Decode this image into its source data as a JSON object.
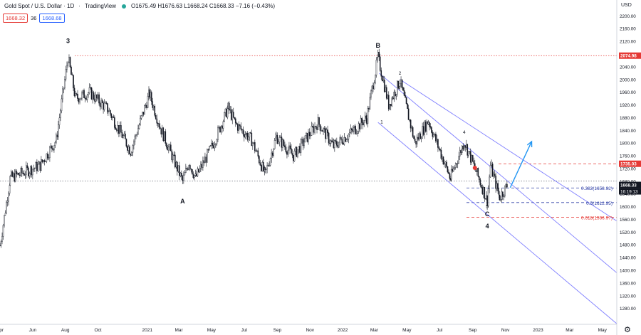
{
  "header": {
    "symbol_title": "Gold Spot / U.S. Dollar · 1D",
    "platform": "TradingView",
    "open": "O1675.49",
    "high": "H1676.63",
    "low": "L1668.24",
    "close": "C1668.33",
    "change": "−7.16 (−0.43%)",
    "bid": "1668.32",
    "spread": "36",
    "ask": "1668.68"
  },
  "currency_label": "USD",
  "settings_icon": "gear-icon",
  "colors": {
    "candle": "#131722",
    "channel": "#7f7fff",
    "fib_blue": "#3949ab",
    "fib_red": "#e53935",
    "arrow": "#2196f3",
    "last_price_bg": "#131722"
  },
  "chart_data": {
    "type": "candlestick",
    "ylim": [
      1230,
      2250
    ],
    "y_ticks": [
      "2200.00",
      "2160.00",
      "2120.00",
      "2080.00",
      "2040.00",
      "2000.00",
      "1960.00",
      "1920.00",
      "1880.00",
      "1840.00",
      "1800.00",
      "1760.00",
      "1720.00",
      "1680.00",
      "1640.00",
      "1600.00",
      "1560.00",
      "1520.00",
      "1480.00",
      "1440.00",
      "1400.00",
      "1360.00",
      "1320.00",
      "1280.00"
    ],
    "x_ticks": [
      "Apr",
      "Jun",
      "Aug",
      "Oct",
      "2021",
      "Mar",
      "May",
      "Jul",
      "Sep",
      "Nov",
      "2022",
      "Mar",
      "May",
      "Jul",
      "Sep",
      "Nov",
      "2023",
      "Mar",
      "May"
    ],
    "x_range": [
      "2020-04-01",
      "2023-05-28"
    ],
    "price_path": [
      {
        "date": "2020-04-01",
        "price": 1478
      },
      {
        "date": "2020-04-20",
        "price": 1690
      },
      {
        "date": "2020-06-15",
        "price": 1730
      },
      {
        "date": "2020-07-15",
        "price": 1810
      },
      {
        "date": "2020-08-06",
        "price": 2070
      },
      {
        "date": "2020-08-20",
        "price": 1940
      },
      {
        "date": "2020-09-15",
        "price": 1960
      },
      {
        "date": "2020-10-20",
        "price": 1905
      },
      {
        "date": "2020-12-01",
        "price": 1775
      },
      {
        "date": "2021-01-05",
        "price": 1955
      },
      {
        "date": "2021-01-25",
        "price": 1850
      },
      {
        "date": "2021-03-08",
        "price": 1680
      },
      {
        "date": "2021-03-20",
        "price": 1740
      },
      {
        "date": "2021-04-01",
        "price": 1690
      },
      {
        "date": "2021-05-05",
        "price": 1800
      },
      {
        "date": "2021-06-01",
        "price": 1910
      },
      {
        "date": "2021-06-15",
        "price": 1860
      },
      {
        "date": "2021-07-15",
        "price": 1810
      },
      {
        "date": "2021-08-09",
        "price": 1700
      },
      {
        "date": "2021-08-30",
        "price": 1820
      },
      {
        "date": "2021-10-01",
        "price": 1760
      },
      {
        "date": "2021-11-16",
        "price": 1865
      },
      {
        "date": "2021-12-15",
        "price": 1790
      },
      {
        "date": "2022-01-25",
        "price": 1845
      },
      {
        "date": "2022-02-15",
        "price": 1880
      },
      {
        "date": "2022-03-08",
        "price": 2070
      },
      {
        "date": "2022-03-28",
        "price": 1920
      },
      {
        "date": "2022-04-18",
        "price": 1995
      },
      {
        "date": "2022-05-16",
        "price": 1800
      },
      {
        "date": "2022-06-10",
        "price": 1870
      },
      {
        "date": "2022-07-21",
        "price": 1690
      },
      {
        "date": "2022-08-16",
        "price": 1805
      },
      {
        "date": "2022-09-05",
        "price": 1720
      },
      {
        "date": "2022-09-28",
        "price": 1620
      },
      {
        "date": "2022-10-04",
        "price": 1730
      },
      {
        "date": "2022-10-21",
        "price": 1630
      },
      {
        "date": "2022-11-05",
        "price": 1668
      }
    ],
    "horizontal_levels": [
      {
        "price": 2074.98,
        "label": "2074.98",
        "color": "#e53935",
        "style": "dotted"
      },
      {
        "price": 1735.03,
        "label": "1735.03",
        "color": "#e53935",
        "style": "dashed"
      },
      {
        "price": 1680.6,
        "label": "",
        "color": "#787b86",
        "style": "dotted"
      },
      {
        "price": 1668.33,
        "label": "1668.33",
        "color": "#131722",
        "style": "last"
      }
    ],
    "last_price_countdown": "16:19:13",
    "fibonacci": [
      {
        "label": "0.382(1658.92)",
        "price": 1658.92,
        "color": "#3949ab"
      },
      {
        "label": "0.5(1612.95)",
        "price": 1612.95,
        "color": "#3949ab"
      },
      {
        "label": "0.618(1566.97)",
        "price": 1566.97,
        "color": "#e53935"
      }
    ],
    "wave_labels": [
      {
        "text": "3",
        "date": "2020-08-06",
        "price": 2115,
        "size": "large"
      },
      {
        "text": "A",
        "date": "2021-03-08",
        "price": 1610,
        "size": "large"
      },
      {
        "text": "B",
        "date": "2022-03-08",
        "price": 2100,
        "size": "large"
      },
      {
        "text": "2",
        "date": "2022-04-18",
        "price": 2015,
        "size": "small"
      },
      {
        "text": "1",
        "date": "2022-03-15",
        "price": 1862,
        "size": "small"
      },
      {
        "text": "4",
        "date": "2022-08-16",
        "price": 1830,
        "size": "small"
      },
      {
        "text": "3",
        "date": "2022-07-21",
        "price": 1680,
        "size": "small"
      },
      {
        "text": "5",
        "date": "2022-09-28",
        "price": 1596,
        "size": "small"
      },
      {
        "text": "C",
        "date": "2022-09-28",
        "price": 1570,
        "size": "large"
      },
      {
        "text": "4",
        "date": "2022-09-28",
        "price": 1532,
        "size": "large"
      }
    ],
    "channel_lines": [
      {
        "from": {
          "date": "2022-03-10",
          "price": 2020
        },
        "to": {
          "date": "2023-05-28",
          "price": 1392
        }
      },
      {
        "from": {
          "date": "2022-04-18",
          "price": 2000
        },
        "to": {
          "date": "2023-05-28",
          "price": 1555
        }
      },
      {
        "from": {
          "date": "2022-03-08",
          "price": 1865
        },
        "to": {
          "date": "2023-05-28",
          "price": 1232
        }
      }
    ],
    "forecast_arrow": {
      "from": {
        "date": "2022-11-10",
        "price": 1660
      },
      "to": {
        "date": "2022-12-20",
        "price": 1805
      }
    }
  }
}
